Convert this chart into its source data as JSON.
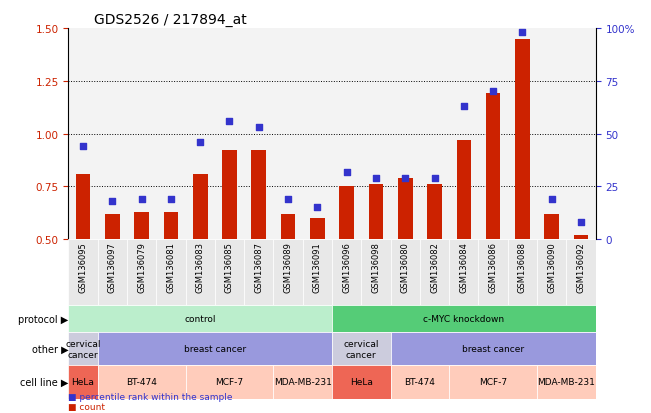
{
  "title": "GDS2526 / 217894_at",
  "samples": [
    "GSM136095",
    "GSM136097",
    "GSM136079",
    "GSM136081",
    "GSM136083",
    "GSM136085",
    "GSM136087",
    "GSM136089",
    "GSM136091",
    "GSM136096",
    "GSM136098",
    "GSM136080",
    "GSM136082",
    "GSM136084",
    "GSM136086",
    "GSM136088",
    "GSM136090",
    "GSM136092"
  ],
  "count_values": [
    0.81,
    0.62,
    0.63,
    0.63,
    0.81,
    0.92,
    0.92,
    0.62,
    0.6,
    0.75,
    0.76,
    0.79,
    0.76,
    0.97,
    1.19,
    1.45,
    0.62,
    0.52
  ],
  "percentile_values": [
    44,
    18,
    19,
    19,
    46,
    56,
    53,
    19,
    15,
    32,
    29,
    29,
    29,
    63,
    70,
    98,
    19,
    8
  ],
  "ylim_left": [
    0.5,
    1.5
  ],
  "ylim_right": [
    0,
    100
  ],
  "yticks_left": [
    0.5,
    0.75,
    1.0,
    1.25,
    1.5
  ],
  "yticks_right": [
    0,
    25,
    50,
    75,
    100
  ],
  "ytick_labels_right": [
    "0",
    "25",
    "50",
    "75",
    "100%"
  ],
  "bar_color": "#cc2200",
  "dot_color": "#3333cc",
  "protocol_groups": [
    {
      "label": "control",
      "start": 0,
      "end": 9,
      "color": "#bbeecc"
    },
    {
      "label": "c-MYC knockdown",
      "start": 9,
      "end": 18,
      "color": "#55cc77"
    }
  ],
  "other_groups": [
    {
      "label": "cervical\ncancer",
      "start": 0,
      "end": 1,
      "color": "#ccccdd"
    },
    {
      "label": "breast cancer",
      "start": 1,
      "end": 9,
      "color": "#9999dd"
    },
    {
      "label": "cervical\ncancer",
      "start": 9,
      "end": 11,
      "color": "#ccccdd"
    },
    {
      "label": "breast cancer",
      "start": 11,
      "end": 18,
      "color": "#9999dd"
    }
  ],
  "cell_line_groups": [
    {
      "label": "HeLa",
      "start": 0,
      "end": 1,
      "color": "#ee6655"
    },
    {
      "label": "BT-474",
      "start": 1,
      "end": 4,
      "color": "#ffccbb"
    },
    {
      "label": "MCF-7",
      "start": 4,
      "end": 7,
      "color": "#ffccbb"
    },
    {
      "label": "MDA-MB-231",
      "start": 7,
      "end": 9,
      "color": "#ffccbb"
    },
    {
      "label": "HeLa",
      "start": 9,
      "end": 11,
      "color": "#ee6655"
    },
    {
      "label": "BT-474",
      "start": 11,
      "end": 13,
      "color": "#ffccbb"
    },
    {
      "label": "MCF-7",
      "start": 13,
      "end": 16,
      "color": "#ffccbb"
    },
    {
      "label": "MDA-MB-231",
      "start": 16,
      "end": 18,
      "color": "#ffccbb"
    }
  ],
  "row_labels": [
    "protocol",
    "other",
    "cell line"
  ],
  "legend_items": [
    {
      "color": "#cc2200",
      "label": "count"
    },
    {
      "color": "#3333cc",
      "label": "percentile rank within the sample"
    }
  ],
  "bg_color": "#e8e8e8",
  "gridline_yticks": [
    0.75,
    1.0,
    1.25
  ]
}
